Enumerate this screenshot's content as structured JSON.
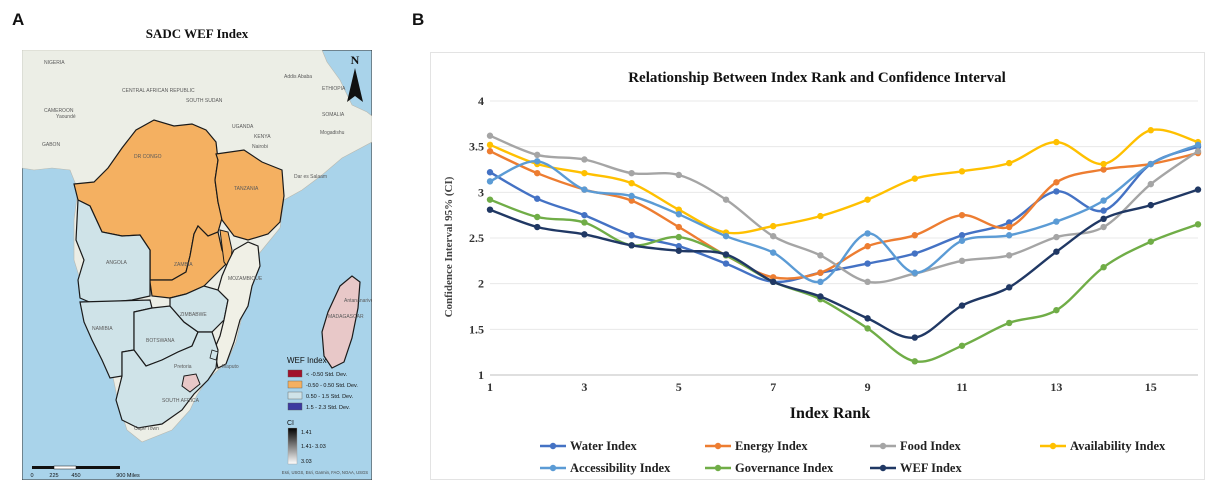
{
  "panel_a": {
    "letter": "A",
    "title": "SADC WEF Index",
    "north_label": "N",
    "legend": {
      "title": "WEF Index",
      "items": [
        {
          "label": "< -0.50 Std. Dev.",
          "color": "#a1122b"
        },
        {
          "label": "-0.50 - 0.50 Std. Dev.",
          "color": "#f4b061"
        },
        {
          "label": "0.50 - 1.5 Std. Dev.",
          "color": "#cfe3e8"
        },
        {
          "label": "1.5 - 2.3 Std. Dev.",
          "color": "#3c3aa0"
        }
      ],
      "ci_title": "CI",
      "ci_labels": [
        "1.41",
        "1.41- 3.03",
        "3.03"
      ]
    },
    "scale_labels": [
      "0",
      "225",
      "450",
      "900 Miles"
    ],
    "attribution": "Esri, USGS, Esri, Garmin, FAO, NOAA, USGS",
    "place_labels": [
      {
        "text": "NIGERIA"
      },
      {
        "text": "CAMEROON"
      },
      {
        "text": "Yaoundé"
      },
      {
        "text": "GABON"
      },
      {
        "text": "CENTRAL AFRICAN REPUBLIC"
      },
      {
        "text": "SOUTH SUDAN"
      },
      {
        "text": "Addis Ababa"
      },
      {
        "text": "ETHIOPIA"
      },
      {
        "text": "SOMALIA"
      },
      {
        "text": "Mogadishu"
      },
      {
        "text": "UGANDA"
      },
      {
        "text": "KENYA"
      },
      {
        "text": "Nairobi"
      },
      {
        "text": "DR CONGO"
      },
      {
        "text": "TANZANIA"
      },
      {
        "text": "Dar es Salaam"
      },
      {
        "text": "ANGOLA"
      },
      {
        "text": "ZAMBIA"
      },
      {
        "text": "ZIMBABWE"
      },
      {
        "text": "MOZAMBIQUE"
      },
      {
        "text": "NAMIBIA"
      },
      {
        "text": "BOTSWANA"
      },
      {
        "text": "Pretoria"
      },
      {
        "text": "Maputo"
      },
      {
        "text": "SOUTH AFRICA"
      },
      {
        "text": "Cape Town"
      },
      {
        "text": "Antananarivo"
      },
      {
        "text": "MADAGASCAR"
      }
    ],
    "map_colors": {
      "ocean": "#a9d3ea",
      "land": "#eceee6",
      "border": "#1a1a1a"
    }
  },
  "panel_b": {
    "letter": "B"
  },
  "chart_data": {
    "type": "line",
    "title": "Relationship Between Index Rank and Confidence Interval",
    "xlabel": "Index Rank",
    "ylabel": "Confidence Interval 95% (CI)",
    "xlim": [
      1,
      16
    ],
    "ylim": [
      1,
      4
    ],
    "x_ticks": [
      1,
      3,
      5,
      7,
      9,
      11,
      13,
      15
    ],
    "y_ticks": [
      1,
      1.5,
      2,
      2.5,
      3,
      3.5,
      4
    ],
    "y_tick_labels": [
      "1",
      "1.5",
      "2",
      "2.5",
      "3",
      "3.5",
      "4"
    ],
    "x": [
      1,
      2,
      3,
      4,
      5,
      6,
      7,
      8,
      9,
      10,
      11,
      12,
      13,
      14,
      15,
      16
    ],
    "legend_position": "bottom",
    "series": [
      {
        "name": "Water Index",
        "color": "#4472c4",
        "values": [
          3.22,
          2.93,
          2.75,
          2.53,
          2.41,
          2.22,
          2.02,
          2.12,
          2.22,
          2.33,
          2.53,
          2.67,
          3.01,
          2.8,
          3.31,
          3.5
        ]
      },
      {
        "name": "Energy Index",
        "color": "#ed7d31",
        "values": [
          3.45,
          3.21,
          3.03,
          2.91,
          2.62,
          2.31,
          2.07,
          2.12,
          2.41,
          2.53,
          2.75,
          2.62,
          3.11,
          3.25,
          3.31,
          3.43
        ]
      },
      {
        "name": "Food Index",
        "color": "#a5a5a5",
        "values": [
          3.62,
          3.41,
          3.36,
          3.21,
          3.19,
          2.92,
          2.52,
          2.31,
          2.02,
          2.11,
          2.25,
          2.31,
          2.51,
          2.62,
          3.09,
          3.45
        ]
      },
      {
        "name": "Availability Index",
        "color": "#ffc000",
        "values": [
          3.52,
          3.31,
          3.21,
          3.1,
          2.81,
          2.56,
          2.63,
          2.74,
          2.92,
          3.15,
          3.23,
          3.32,
          3.55,
          3.31,
          3.68,
          3.55
        ]
      },
      {
        "name": "Accessibility Index",
        "color": "#5b9bd5",
        "values": [
          3.12,
          3.34,
          3.03,
          2.96,
          2.76,
          2.52,
          2.34,
          2.02,
          2.55,
          2.12,
          2.47,
          2.53,
          2.68,
          2.91,
          3.31,
          3.52
        ]
      },
      {
        "name": "Governance Index",
        "color": "#70ad47",
        "values": [
          2.92,
          2.73,
          2.67,
          2.42,
          2.51,
          2.31,
          2.02,
          1.83,
          1.51,
          1.15,
          1.32,
          1.57,
          1.71,
          2.18,
          2.46,
          2.65
        ]
      },
      {
        "name": "WEF Index",
        "color": "#203864",
        "values": [
          2.81,
          2.62,
          2.54,
          2.42,
          2.36,
          2.32,
          2.02,
          1.86,
          1.62,
          1.41,
          1.76,
          1.96,
          2.35,
          2.71,
          2.86,
          3.03
        ]
      }
    ]
  }
}
